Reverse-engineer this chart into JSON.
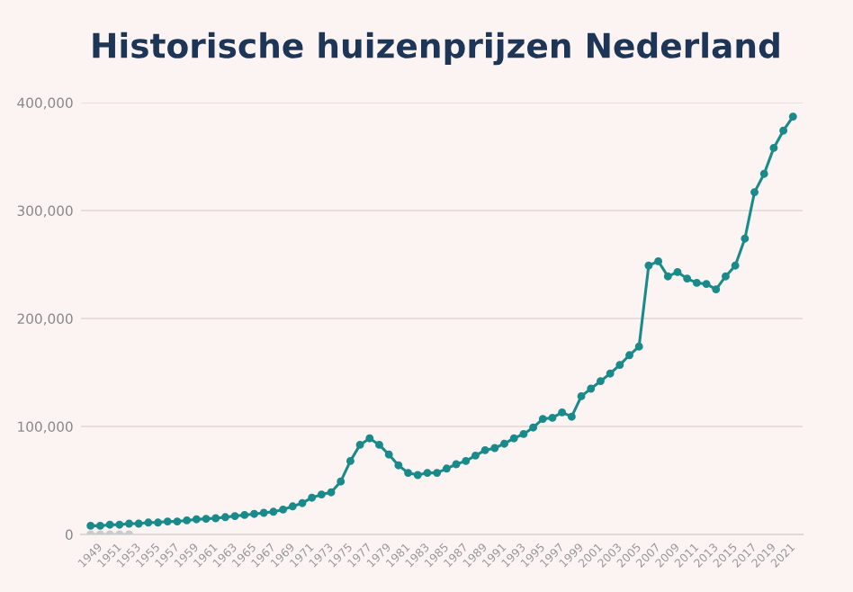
{
  "chart_data": {
    "type": "line",
    "title": "Historische huizenprijzen Nederland",
    "x": [
      1949,
      1950,
      1951,
      1952,
      1953,
      1954,
      1955,
      1956,
      1957,
      1958,
      1959,
      1960,
      1961,
      1962,
      1963,
      1964,
      1965,
      1966,
      1967,
      1968,
      1969,
      1970,
      1971,
      1972,
      1973,
      1974,
      1975,
      1976,
      1977,
      1978,
      1979,
      1980,
      1981,
      1982,
      1983,
      1984,
      1985,
      1986,
      1987,
      1988,
      1989,
      1990,
      1991,
      1992,
      1993,
      1994,
      1995,
      1996,
      1997,
      1998,
      1999,
      2000,
      2001,
      2002,
      2003,
      2004,
      2005,
      2006,
      2007,
      2008,
      2009,
      2010,
      2011,
      2012,
      2013,
      2014,
      2015,
      2016,
      2017,
      2018,
      2019,
      2020,
      2021,
      2022
    ],
    "series": [
      {
        "color": "#1a8a8a",
        "values": [
          8000,
          8000,
          9000,
          9000,
          10000,
          10000,
          11000,
          11000,
          12000,
          12000,
          13000,
          14000,
          14500,
          15000,
          16000,
          17000,
          18000,
          19000,
          20000,
          21000,
          23000,
          26000,
          29000,
          34000,
          37000,
          39000,
          49000,
          68000,
          83000,
          89000,
          83000,
          74000,
          64000,
          57000,
          55000,
          57000,
          57000,
          61000,
          65000,
          68000,
          73000,
          78000,
          80000,
          84000,
          89000,
          93000,
          99000,
          107000,
          108000,
          113000,
          109000,
          128000,
          135000,
          142000,
          149000,
          157000,
          166000,
          174000,
          249000,
          253000,
          239000,
          243000,
          237000,
          233000,
          232000,
          227000,
          239000,
          249000,
          274000,
          317000,
          334000,
          358000,
          374000,
          387000
        ]
      },
      {
        "color": "#c8cccc",
        "x": [
          1949,
          1950,
          1951,
          1952,
          1953
        ],
        "values": [
          0,
          0,
          0,
          0,
          0
        ]
      }
    ],
    "xlim": [
      1948,
      2023
    ],
    "ylim": [
      0,
      400000
    ],
    "xticks": [
      1949,
      1951,
      1953,
      1955,
      1957,
      1959,
      1961,
      1963,
      1965,
      1967,
      1969,
      1971,
      1973,
      1975,
      1977,
      1979,
      1981,
      1983,
      1985,
      1987,
      1989,
      1991,
      1993,
      1995,
      1997,
      1999,
      2001,
      2003,
      2005,
      2007,
      2009,
      2011,
      2013,
      2015,
      2017,
      2019,
      2021
    ],
    "yticks": [
      0,
      {
        "value": 100000,
        "label": "100,000"
      },
      {
        "value": 200000,
        "label": "200,000"
      },
      {
        "value": 300000,
        "label": "300,000"
      },
      {
        "value": 400000,
        "label": "400,000"
      }
    ],
    "grid": "y",
    "marker": "circle",
    "line_style": "solid",
    "legend": false
  }
}
